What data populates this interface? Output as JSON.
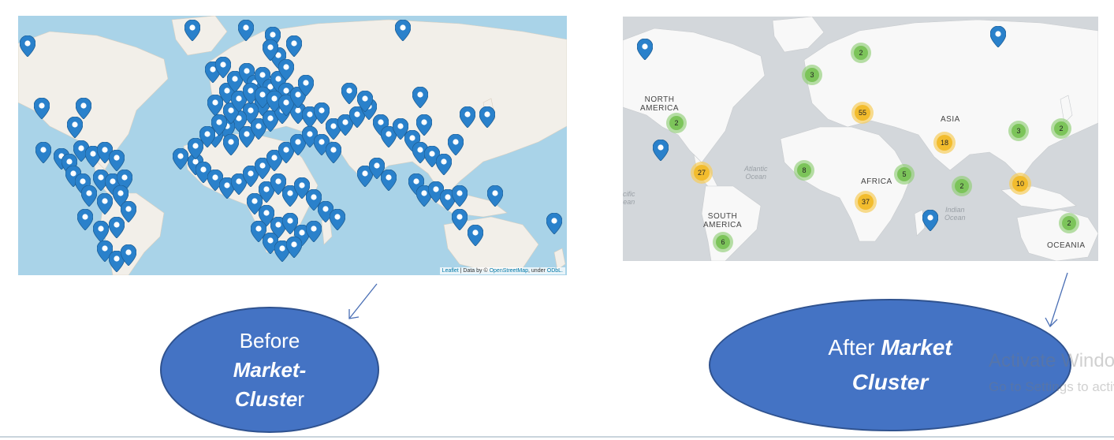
{
  "left_map": {
    "attribution_leaflet": "Leaflet",
    "attribution_mid": " | Data by © ",
    "attribution_osm": "OpenStreetMap",
    "attribution_under": ", under ",
    "attribution_odbl": "ODbL."
  },
  "right_map": {
    "clusters": [
      {
        "count": "2",
        "color": "green"
      },
      {
        "count": "3",
        "color": "green"
      },
      {
        "count": "2",
        "color": "green"
      },
      {
        "count": "55",
        "color": "yellow"
      },
      {
        "count": "18",
        "color": "yellow"
      },
      {
        "count": "3",
        "color": "green"
      },
      {
        "count": "2",
        "color": "green"
      },
      {
        "count": "27",
        "color": "yellow"
      },
      {
        "count": "8",
        "color": "green"
      },
      {
        "count": "5",
        "color": "green"
      },
      {
        "count": "2",
        "color": "green"
      },
      {
        "count": "10",
        "color": "yellow"
      },
      {
        "count": "37",
        "color": "yellow"
      },
      {
        "count": "6",
        "color": "green"
      },
      {
        "count": "2",
        "color": "green"
      }
    ],
    "regions": {
      "north_america_1": "NORTH",
      "north_america_2": "AMERICA",
      "asia": "ASIA",
      "africa": "AFRICA",
      "south_america_1": "SOUTH",
      "south_america_2": "AMERICA",
      "oceania": "OCEANIA"
    },
    "oceans": {
      "atlantic_1": "Atlantic",
      "atlantic_2": "Ocean",
      "indian_1": "Indian",
      "indian_2": "Ocean",
      "pacific_1": "cific",
      "pacific_2": "ean"
    }
  },
  "captions": {
    "before_line1": "Before",
    "before_line2": "Market-",
    "before_line3_bold": "Cluste",
    "before_line3_rest": "r",
    "after_line1_plain": "After ",
    "after_line1_bold": "Market",
    "after_line2_bold": "Cluster"
  },
  "watermark": {
    "line1": "Activate Windows",
    "line2": "Go to Settings to activate Windows."
  },
  "colors": {
    "pin": "#2a81cb",
    "cluster_green": "#7cc45a",
    "cluster_yellow": "#f2bc2d",
    "ellipse": "#4473c4",
    "left_ocean": "#a9d3e8",
    "right_ocean": "#d3d7db"
  }
}
